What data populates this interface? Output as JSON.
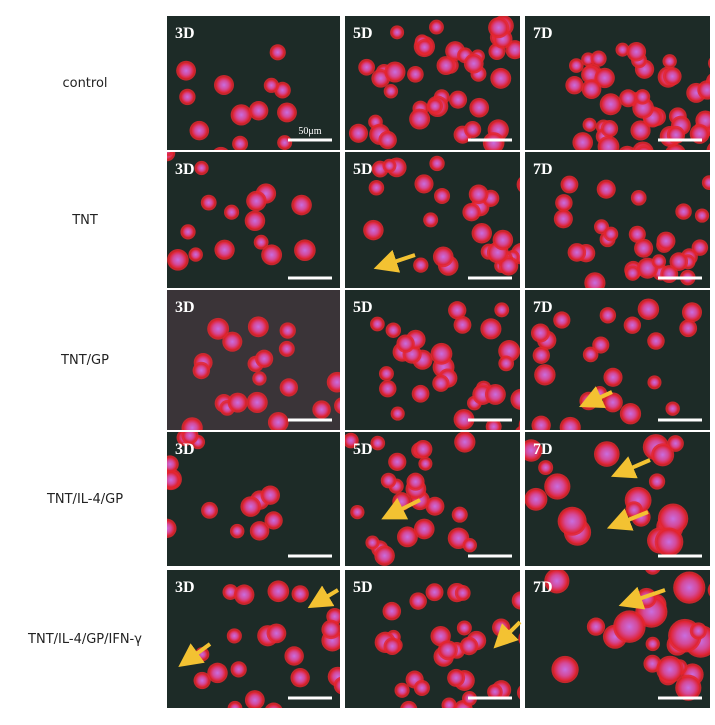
{
  "rows": [
    {
      "label": "control",
      "panels": [
        "3D",
        "5D",
        "7D"
      ]
    },
    {
      "label": "TNT",
      "panels": [
        "3D",
        "5D",
        "7D"
      ]
    },
    {
      "label": "TNT/GP",
      "panels": [
        "3D",
        "5D",
        "7D"
      ]
    },
    {
      "label": "TNT/IL-4/GP",
      "panels": [
        "3D",
        "5D",
        "7D"
      ]
    },
    {
      "label": "TNT/IL-4/GP/IFN-γ",
      "panels": [
        "3D",
        "5D",
        "7D"
      ]
    }
  ],
  "scale_bar_label": "50μm"
}
